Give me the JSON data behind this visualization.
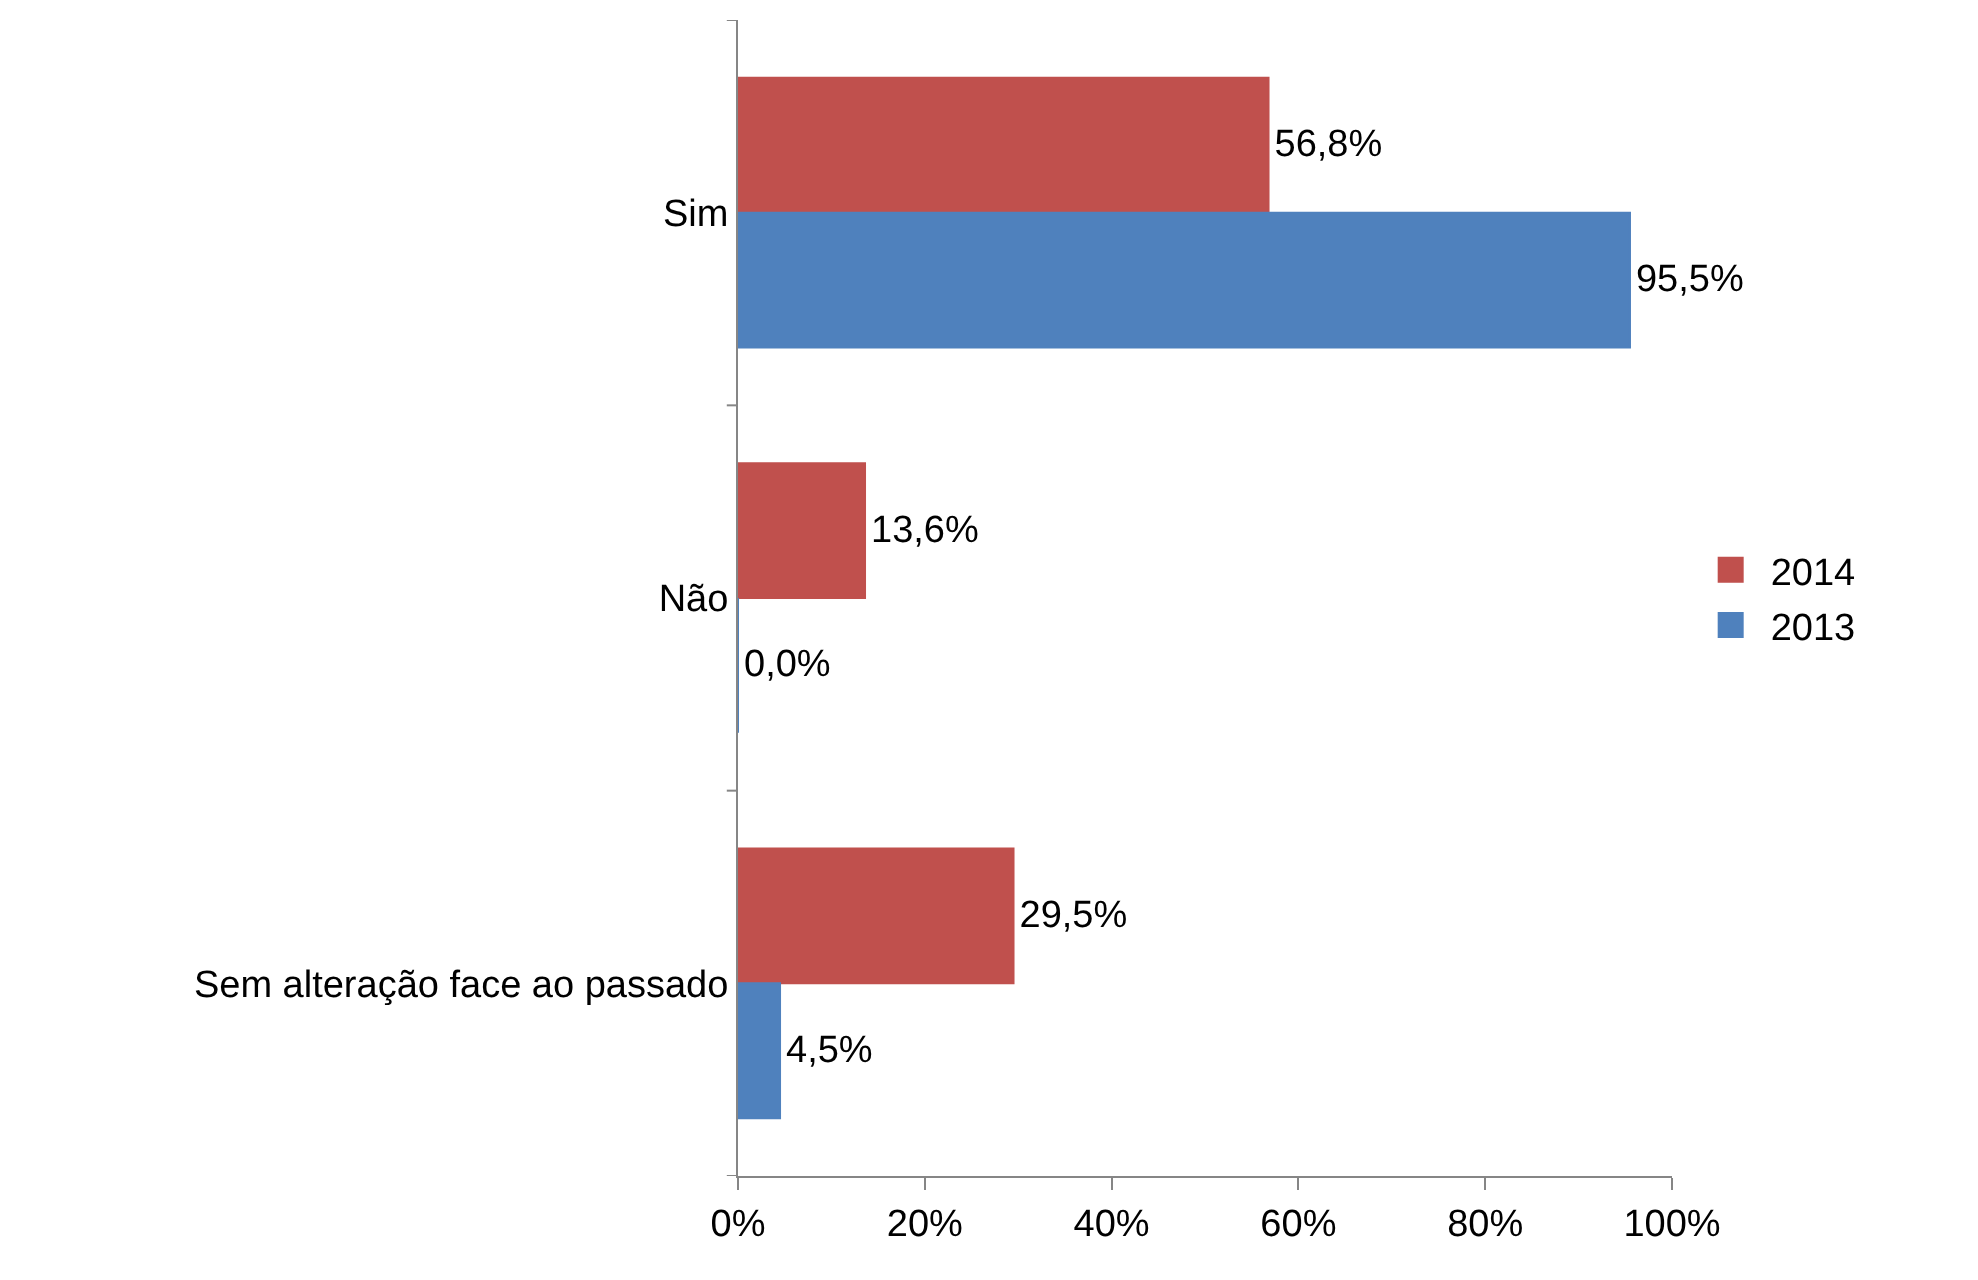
{
  "chart_data": {
    "type": "bar",
    "orientation": "horizontal",
    "categories": [
      "Sim",
      "Não",
      "Sem alteração face ao passado"
    ],
    "series": [
      {
        "name": "2014",
        "color": "#c0504d",
        "values": [
          56.8,
          13.6,
          29.5
        ],
        "value_labels": [
          "56,8%",
          "13,6%",
          "29,5%"
        ]
      },
      {
        "name": "2013",
        "color": "#4f81bd",
        "values": [
          95.5,
          0.0,
          4.5
        ],
        "value_labels": [
          "95,5%",
          "0,0%",
          "4,5%"
        ]
      }
    ],
    "xlim": [
      0,
      100
    ],
    "xticks": [
      {
        "value": 0,
        "label": "0%"
      },
      {
        "value": 20,
        "label": "20%"
      },
      {
        "value": 40,
        "label": "40%"
      },
      {
        "value": 60,
        "label": "60%"
      },
      {
        "value": 80,
        "label": "80%"
      },
      {
        "value": 100,
        "label": "100%"
      }
    ],
    "legend": "right"
  }
}
